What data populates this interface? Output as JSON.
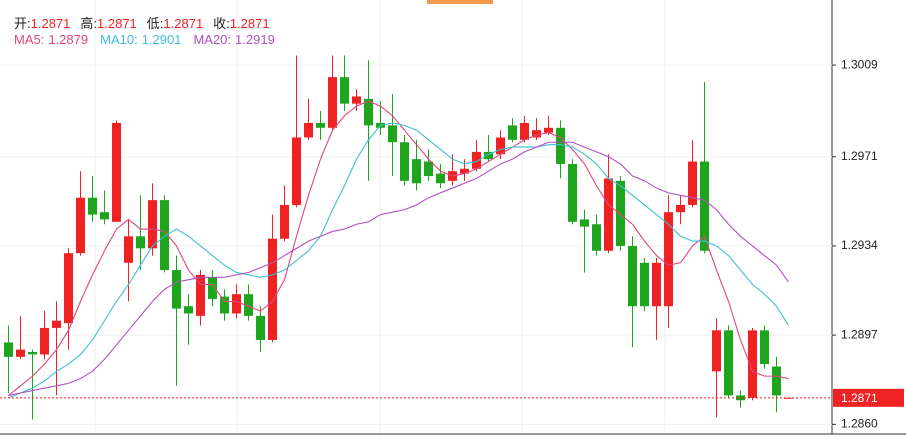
{
  "chart_data": {
    "type": "candlestick",
    "up_color": "#ee2222",
    "down_color": "#1ea51e",
    "ylim": [
      1.2856,
      1.3036
    ],
    "yticks": [
      1.3009,
      1.2971,
      1.2934,
      1.2897,
      {
        "value": 1.286,
        "label": "1.2860"
      }
    ],
    "grid": true,
    "ohlc_labels": [
      "开:",
      "高:",
      "低:",
      "收:"
    ],
    "open": [
      1.2894,
      1.2888,
      1.289,
      1.2889,
      1.29,
      1.2902,
      1.2931,
      1.2954,
      1.2948,
      1.2944,
      1.2927,
      1.2938,
      1.2933,
      1.2953,
      1.2924,
      1.2909,
      1.2905,
      1.2921,
      1.2913,
      1.2906,
      1.2914,
      1.2905,
      1.2895,
      1.2937,
      1.2951,
      1.2979,
      1.2985,
      1.2983,
      1.3004,
      1.2993,
      1.2995,
      1.2985,
      1.2984,
      1.2977,
      1.297,
      1.2969,
      1.2964,
      1.2961,
      1.2964,
      1.2966,
      1.2973,
      1.2972,
      1.2984,
      1.2978,
      1.2979,
      1.2981,
      1.2983,
      1.2968,
      1.2945,
      1.2943,
      1.2932,
      1.2961,
      1.2934,
      1.2927,
      1.2909,
      1.2909,
      1.2948,
      1.2951,
      1.2969,
      1.2882,
      1.2899,
      1.2872,
      1.2871,
      1.2899,
      1.2884,
      1.2871
    ],
    "high": [
      1.2901,
      1.2905,
      1.2891,
      1.2907,
      1.2911,
      1.2933,
      1.2965,
      1.2963,
      1.2957,
      1.2986,
      1.2945,
      1.2955,
      1.296,
      1.2955,
      1.293,
      1.2914,
      1.2924,
      1.2924,
      1.2916,
      1.2918,
      1.2918,
      1.2909,
      1.2947,
      1.2959,
      1.3013,
      1.2995,
      1.299,
      1.3013,
      1.3013,
      1.2999,
      1.3011,
      1.2994,
      1.2997,
      1.298,
      1.2978,
      1.2974,
      1.2968,
      1.2972,
      1.297,
      1.2978,
      1.298,
      1.2982,
      1.2987,
      1.2988,
      1.2987,
      1.2988,
      1.2986,
      1.297,
      1.2949,
      1.2947,
      1.2972,
      1.2963,
      1.2938,
      1.2929,
      1.2929,
      1.2955,
      1.2955,
      1.2978,
      1.3002,
      1.2904,
      1.2901,
      1.2874,
      1.29,
      1.2901,
      1.2888,
      1.2871
    ],
    "low": [
      1.2873,
      1.2887,
      1.2862,
      1.2887,
      1.2872,
      1.2891,
      1.293,
      1.2944,
      1.2943,
      1.2944,
      1.2911,
      1.2924,
      1.293,
      1.2923,
      1.2876,
      1.2893,
      1.2901,
      1.2909,
      1.2903,
      1.2904,
      1.2903,
      1.289,
      1.2894,
      1.2936,
      1.295,
      1.2978,
      1.2978,
      1.2982,
      1.299,
      1.299,
      1.2961,
      1.298,
      1.2963,
      1.2959,
      1.2957,
      1.2961,
      1.2958,
      1.2959,
      1.2961,
      1.2965,
      1.2969,
      1.297,
      1.2977,
      1.2977,
      1.2978,
      1.298,
      1.2962,
      1.2943,
      1.2923,
      1.293,
      1.2931,
      1.2932,
      1.2892,
      1.2907,
      1.2895,
      1.29,
      1.2943,
      1.295,
      1.2931,
      1.2863,
      1.2871,
      1.2867,
      1.287,
      1.2883,
      1.2865,
      1.2871
    ],
    "close": [
      1.2888,
      1.2891,
      1.2889,
      1.29,
      1.2903,
      1.2931,
      1.2954,
      1.2947,
      1.2945,
      1.2985,
      1.2938,
      1.2933,
      1.2953,
      1.2924,
      1.2908,
      1.2906,
      1.2922,
      1.2912,
      1.2906,
      1.2914,
      1.2905,
      1.2895,
      1.2937,
      1.2951,
      1.2979,
      1.2985,
      1.2983,
      1.3004,
      1.2993,
      1.2996,
      1.2984,
      1.2983,
      1.2977,
      1.2961,
      1.296,
      1.2963,
      1.296,
      1.2965,
      1.2966,
      1.2973,
      1.297,
      1.2979,
      1.2978,
      1.2985,
      1.2982,
      1.2983,
      1.2968,
      1.2944,
      1.2942,
      1.2932,
      1.2962,
      1.2934,
      1.2909,
      1.2909,
      1.2927,
      1.2948,
      1.2951,
      1.2969,
      1.2932,
      1.2899,
      1.2872,
      1.287,
      1.2899,
      1.2885,
      1.2872,
      1.2871
    ],
    "series": [
      {
        "name": "MA5:",
        "color": "#e2457f",
        "values": [
          1.2872,
          1.2876,
          1.288,
          1.2885,
          1.2891,
          1.2899,
          1.2911,
          1.2922,
          1.2932,
          1.2941,
          1.2945,
          1.2941,
          1.2941,
          1.294,
          1.2934,
          1.2924,
          1.2918,
          1.2918,
          1.2911,
          1.2911,
          1.2909,
          1.2907,
          1.2911,
          1.292,
          1.2938,
          1.2955,
          1.297,
          1.2982,
          1.2988,
          1.2992,
          1.2994,
          1.2992,
          1.2988,
          1.2982,
          1.2976,
          1.297,
          1.2965,
          1.2963,
          1.2964,
          1.2966,
          1.2969,
          1.2972,
          1.2975,
          1.2978,
          1.298,
          1.2981,
          1.2979,
          1.2974,
          1.2968,
          1.2959,
          1.2951,
          1.2947,
          1.2943,
          1.2936,
          1.293,
          1.2926,
          1.2927,
          1.2934,
          1.2938,
          1.2924,
          1.2911,
          1.2895,
          1.2882,
          1.288,
          1.288,
          1.2879
        ]
      },
      {
        "name": "MA10:",
        "color": "#3cbfd6",
        "values": [
          1.2871,
          1.2873,
          1.2875,
          1.2878,
          1.2882,
          1.2885,
          1.2889,
          1.2895,
          1.2903,
          1.2911,
          1.2918,
          1.2926,
          1.2934,
          1.2938,
          1.2941,
          1.2938,
          1.2934,
          1.293,
          1.2926,
          1.2923,
          1.2922,
          1.2921,
          1.2922,
          1.2924,
          1.2928,
          1.2932,
          1.2938,
          1.2949,
          1.2959,
          1.297,
          1.2978,
          1.2984,
          1.2985,
          1.2984,
          1.2982,
          1.2978,
          1.2974,
          1.297,
          1.2968,
          1.2969,
          1.2972,
          1.2974,
          1.2975,
          1.2975,
          1.2975,
          1.2976,
          1.2976,
          1.2975,
          1.2972,
          1.2968,
          1.2962,
          1.2959,
          1.2955,
          1.2951,
          1.2947,
          1.2943,
          1.2938,
          1.2936,
          1.2936,
          1.2934,
          1.293,
          1.2924,
          1.2918,
          1.2914,
          1.2909,
          1.2901
        ]
      },
      {
        "name": "MA20:",
        "color": "#b350c2",
        "values": [
          1.2872,
          1.2873,
          1.2874,
          1.2875,
          1.2876,
          1.2877,
          1.2879,
          1.2882,
          1.2887,
          1.2893,
          1.2899,
          1.2905,
          1.2911,
          1.2916,
          1.2919,
          1.292,
          1.2921,
          1.2921,
          1.2921,
          1.2922,
          1.2923,
          1.2925,
          1.2927,
          1.293,
          1.2933,
          1.2936,
          1.2938,
          1.294,
          1.2941,
          1.2943,
          1.2944,
          1.2947,
          1.2948,
          1.2949,
          1.2951,
          1.2954,
          1.2956,
          1.2958,
          1.296,
          1.2962,
          1.2965,
          1.2968,
          1.297,
          1.2973,
          1.2975,
          1.2977,
          1.2977,
          1.2977,
          1.2975,
          1.2973,
          1.2971,
          1.2968,
          1.2963,
          1.2961,
          1.2958,
          1.2956,
          1.2955,
          1.2954,
          1.2953,
          1.2949,
          1.2943,
          1.2938,
          1.2934,
          1.293,
          1.2926,
          1.2919
        ]
      }
    ]
  }
}
